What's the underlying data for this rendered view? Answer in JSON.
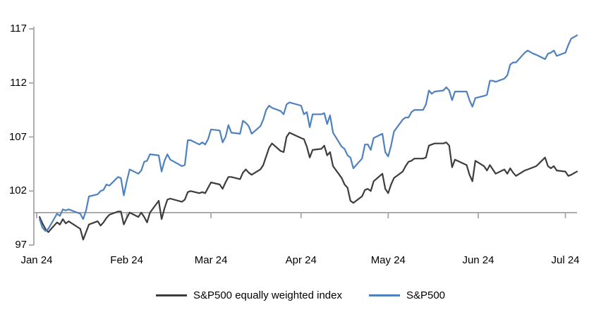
{
  "chart_data": {
    "type": "line",
    "title": "",
    "xlabel": "",
    "ylabel": "",
    "grid": "off",
    "legend_position": "bottom-center",
    "y_axis": {
      "ticks": [
        97,
        102,
        107,
        112,
        117
      ],
      "min": 97,
      "max": 117,
      "baseline": 100
    },
    "x_axis": {
      "tick_labels": [
        "Jan 24",
        "Feb 24",
        "Mar 24",
        "Apr 24",
        "May 24",
        "Jun 24",
        "Jul 24"
      ],
      "tick_days": [
        0,
        31,
        60,
        91,
        121,
        152,
        182
      ],
      "max_day": 186
    },
    "x_days": [
      1,
      2,
      3,
      4,
      7,
      8,
      9,
      10,
      11,
      15,
      16,
      17,
      18,
      21,
      22,
      23,
      24,
      25,
      28,
      29,
      30,
      31,
      32,
      35,
      36,
      37,
      38,
      39,
      42,
      43,
      44,
      45,
      46,
      50,
      51,
      52,
      53,
      56,
      57,
      58,
      59,
      60,
      63,
      64,
      65,
      66,
      67,
      70,
      71,
      72,
      73,
      74,
      77,
      78,
      79,
      80,
      81,
      84,
      85,
      86,
      87,
      91,
      92,
      93,
      94,
      95,
      98,
      99,
      100,
      101,
      102,
      105,
      106,
      107,
      108,
      109,
      112,
      113,
      114,
      115,
      116,
      119,
      120,
      121,
      122,
      123,
      126,
      127,
      128,
      129,
      130,
      133,
      134,
      135,
      136,
      137,
      140,
      141,
      142,
      143,
      144,
      148,
      149,
      150,
      151,
      154,
      155,
      156,
      157,
      158,
      161,
      162,
      163,
      164,
      165,
      168,
      169,
      171,
      172,
      175,
      176,
      177,
      178,
      179,
      182,
      183,
      184,
      186
    ],
    "series": [
      {
        "name": "S&P500 equally weighted index",
        "color": "#3d3d3d",
        "values": [
          99.6,
          99.0,
          98.5,
          98.2,
          99.1,
          98.9,
          99.4,
          99.0,
          99.2,
          98.5,
          97.5,
          98.2,
          98.9,
          99.2,
          98.8,
          99.1,
          99.5,
          99.8,
          100.1,
          100.1,
          98.9,
          99.5,
          100.0,
          99.6,
          100.0,
          99.6,
          99.1,
          100.0,
          101.1,
          99.4,
          100.4,
          101.2,
          101.3,
          101.0,
          101.2,
          101.9,
          102.0,
          101.8,
          101.9,
          101.8,
          102.3,
          102.8,
          102.6,
          102.2,
          102.8,
          103.3,
          103.3,
          103.1,
          103.7,
          104.0,
          103.7,
          103.5,
          104.0,
          104.4,
          105.2,
          106.0,
          106.4,
          105.7,
          105.6,
          107.0,
          107.4,
          106.9,
          106.8,
          106.1,
          105.1,
          105.8,
          105.9,
          106.2,
          105.3,
          105.6,
          104.3,
          103.2,
          102.6,
          102.3,
          101.1,
          100.9,
          101.5,
          102.1,
          102.2,
          102.0,
          102.9,
          103.6,
          102.2,
          101.8,
          102.6,
          103.2,
          103.8,
          104.3,
          104.7,
          104.8,
          105.0,
          105.0,
          105.1,
          106.2,
          106.3,
          106.4,
          106.4,
          106.5,
          106.2,
          104.2,
          104.9,
          104.4,
          103.5,
          102.9,
          104.8,
          104.3,
          103.9,
          104.4,
          104.0,
          103.6,
          104.0,
          103.6,
          104.1,
          103.7,
          103.4,
          103.9,
          104.0,
          104.2,
          104.3,
          105.1,
          104.3,
          104.1,
          104.3,
          103.9,
          103.8,
          103.4,
          103.5,
          103.8
        ]
      },
      {
        "name": "S&P500",
        "color": "#4e81bd",
        "values": [
          99.4,
          98.6,
          98.3,
          98.5,
          99.9,
          99.7,
          100.3,
          100.2,
          100.3,
          99.9,
          99.4,
          100.2,
          101.5,
          101.7,
          102.0,
          102.1,
          102.6,
          102.5,
          103.3,
          103.2,
          101.6,
          102.9,
          104.0,
          103.6,
          103.9,
          104.7,
          104.8,
          105.4,
          105.3,
          103.8,
          104.8,
          105.4,
          104.9,
          104.3,
          104.4,
          106.7,
          106.7,
          106.3,
          106.5,
          106.3,
          106.8,
          107.7,
          107.6,
          106.5,
          107.0,
          108.1,
          107.4,
          107.3,
          108.5,
          108.3,
          108.0,
          107.3,
          108.0,
          108.6,
          109.5,
          109.9,
          109.7,
          109.4,
          109.1,
          110.0,
          110.2,
          109.9,
          109.1,
          109.3,
          107.9,
          109.1,
          109.1,
          109.2,
          108.2,
          109.0,
          107.4,
          106.1,
          105.9,
          105.3,
          105.1,
          104.1,
          105.0,
          106.3,
          106.3,
          105.8,
          106.9,
          107.3,
          105.6,
          105.2,
          106.2,
          107.5,
          108.6,
          108.8,
          108.8,
          109.3,
          109.5,
          109.5,
          110.0,
          111.3,
          111.0,
          111.2,
          111.3,
          111.6,
          111.3,
          110.4,
          111.2,
          111.2,
          110.4,
          109.8,
          110.6,
          110.8,
          110.9,
          112.2,
          112.2,
          112.1,
          112.4,
          112.7,
          113.7,
          113.9,
          113.9,
          114.8,
          115.0,
          114.7,
          114.6,
          114.2,
          114.7,
          114.8,
          115.0,
          114.5,
          114.8,
          115.5,
          116.1,
          116.4
        ]
      }
    ],
    "axis_color": "#a6a6a6"
  },
  "legend": {
    "items": [
      {
        "label": "S&P500 equally weighted index"
      },
      {
        "label": "S&P500"
      }
    ]
  }
}
